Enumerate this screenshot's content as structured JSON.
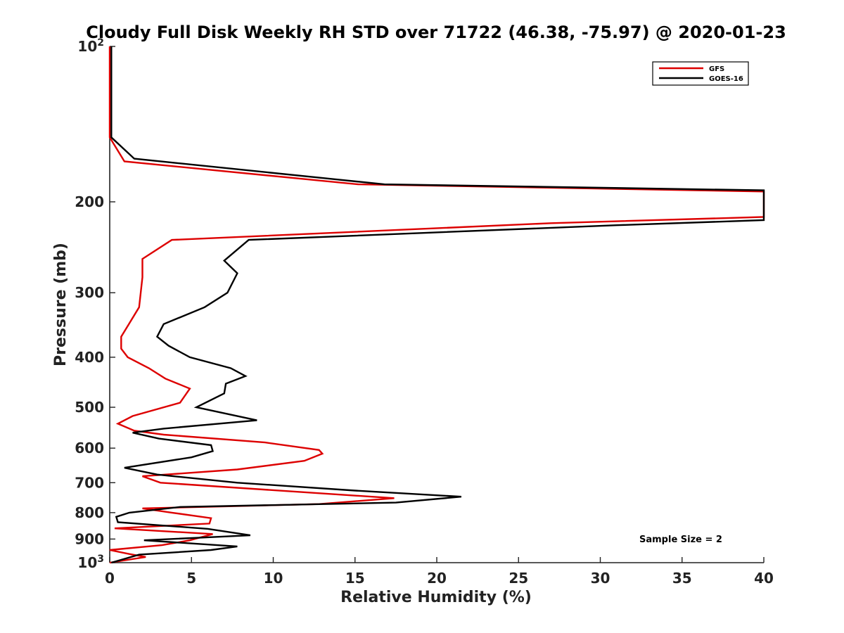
{
  "chart_data": {
    "type": "line",
    "title": "Cloudy Full Disk Weekly RH STD over 71722 (46.38, -75.97) @ 2020-01-23",
    "xlabel": "Relative Humidity (%)",
    "ylabel": "Pressure (mb)",
    "xlim": [
      0,
      40
    ],
    "ylim": [
      100,
      1000
    ],
    "yscale": "log",
    "yreversed": true,
    "grid": false,
    "legend_position": "top-right",
    "x_ticks": [
      0,
      5,
      10,
      15,
      20,
      25,
      30,
      35,
      40
    ],
    "x_tick_labels": [
      "0",
      "5",
      "10",
      "15",
      "20",
      "25",
      "30",
      "35",
      "40"
    ],
    "y_ticks": [
      100,
      200,
      300,
      400,
      500,
      600,
      700,
      800,
      900,
      1000
    ],
    "y_tick_labels": [
      {
        "base": "10",
        "exp": "2"
      },
      {
        "text": "200"
      },
      {
        "text": "300"
      },
      {
        "text": "400"
      },
      {
        "text": "500"
      },
      {
        "text": "600"
      },
      {
        "text": "700"
      },
      {
        "text": "800"
      },
      {
        "text": "900"
      },
      {
        "base": "10",
        "exp": "3"
      }
    ],
    "annotation": "Sample Size = 2",
    "series": [
      {
        "name": "GFS",
        "color": "#dd0000",
        "points": [
          [
            0.0,
            100
          ],
          [
            0.0,
            150
          ],
          [
            0.9,
            167
          ],
          [
            15.2,
            185
          ],
          [
            40,
            191
          ],
          [
            40,
            214
          ],
          [
            27.0,
            220
          ],
          [
            3.8,
            237
          ],
          [
            2.0,
            258
          ],
          [
            2.0,
            280
          ],
          [
            1.8,
            320
          ],
          [
            1.1,
            348
          ],
          [
            0.7,
            365
          ],
          [
            0.7,
            385
          ],
          [
            1.1,
            400
          ],
          [
            2.4,
            420
          ],
          [
            3.4,
            440
          ],
          [
            4.9,
            460
          ],
          [
            4.3,
            490
          ],
          [
            1.4,
            520
          ],
          [
            0.5,
            538
          ],
          [
            1.5,
            555
          ],
          [
            3.3,
            565
          ],
          [
            9.5,
            585
          ],
          [
            12.8,
            605
          ],
          [
            13.0,
            615
          ],
          [
            11.9,
            635
          ],
          [
            7.8,
            660
          ],
          [
            2.0,
            680
          ],
          [
            3.1,
            700
          ],
          [
            17.4,
            750
          ],
          [
            12.8,
            770
          ],
          [
            2.0,
            785
          ],
          [
            3.8,
            800
          ],
          [
            6.2,
            820
          ],
          [
            6.1,
            840
          ],
          [
            0.3,
            858
          ],
          [
            6.3,
            880
          ],
          [
            4.9,
            905
          ],
          [
            3.2,
            925
          ],
          [
            0.0,
            945
          ],
          [
            1.2,
            962
          ],
          [
            2.2,
            975
          ],
          [
            0.0,
            1000
          ]
        ]
      },
      {
        "name": "GOES-16",
        "color": "#000000",
        "points": [
          [
            0.1,
            100
          ],
          [
            0.1,
            150
          ],
          [
            1.5,
            165
          ],
          [
            16.8,
            185
          ],
          [
            40,
            190
          ],
          [
            40,
            217
          ],
          [
            31.0,
            222
          ],
          [
            8.5,
            237
          ],
          [
            7.0,
            260
          ],
          [
            7.8,
            275
          ],
          [
            7.2,
            300
          ],
          [
            5.8,
            320
          ],
          [
            3.3,
            345
          ],
          [
            2.9,
            365
          ],
          [
            3.6,
            380
          ],
          [
            4.9,
            400
          ],
          [
            7.4,
            420
          ],
          [
            8.3,
            435
          ],
          [
            7.1,
            450
          ],
          [
            7.0,
            470
          ],
          [
            5.3,
            500
          ],
          [
            9.0,
            530
          ],
          [
            3.3,
            550
          ],
          [
            1.4,
            560
          ],
          [
            3.0,
            575
          ],
          [
            6.2,
            592
          ],
          [
            6.3,
            608
          ],
          [
            5.0,
            625
          ],
          [
            0.9,
            655
          ],
          [
            2.9,
            675
          ],
          [
            7.8,
            700
          ],
          [
            15.0,
            725
          ],
          [
            21.5,
            745
          ],
          [
            17.5,
            765
          ],
          [
            4.3,
            780
          ],
          [
            1.2,
            800
          ],
          [
            0.4,
            815
          ],
          [
            0.5,
            835
          ],
          [
            6.0,
            860
          ],
          [
            8.6,
            885
          ],
          [
            2.1,
            905
          ],
          [
            7.8,
            930
          ],
          [
            6.2,
            945
          ],
          [
            1.8,
            965
          ],
          [
            0.1,
            1000
          ]
        ]
      }
    ]
  }
}
